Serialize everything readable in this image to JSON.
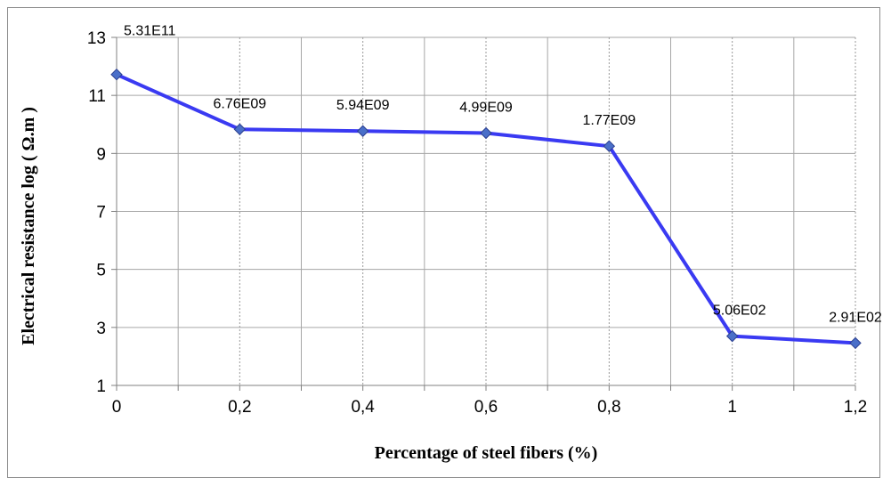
{
  "chart_data": {
    "type": "line",
    "title": "",
    "xlabel": "Percentage of steel fibers (%)",
    "ylabel": "Electrical resistance log ( Ω.m )",
    "x": [
      0,
      0.2,
      0.4,
      0.6,
      0.8,
      1,
      1.2
    ],
    "x_tick_labels": [
      "0",
      "0,2",
      "0,4",
      "0,6",
      "0,8",
      "1",
      "1,2"
    ],
    "xlim": [
      0,
      1.2
    ],
    "ylim": [
      1,
      13
    ],
    "y_ticks": [
      1,
      3,
      5,
      7,
      9,
      11,
      13
    ],
    "y_tick_labels": [
      "1",
      "3",
      "5",
      "7",
      "9",
      "11",
      "13"
    ],
    "grid": true,
    "legend": "none",
    "series": [
      {
        "values": [
          11.72,
          9.83,
          9.77,
          9.7,
          9.25,
          2.7,
          2.46
        ],
        "data_labels": [
          "5.31E11",
          "6.76E09",
          "5.94E09",
          "4.99E09",
          "1.77E09",
          "5.06E02",
          "2.91E02"
        ],
        "color": "#3a3af2",
        "marker_color": "#4a6fc9"
      }
    ]
  }
}
